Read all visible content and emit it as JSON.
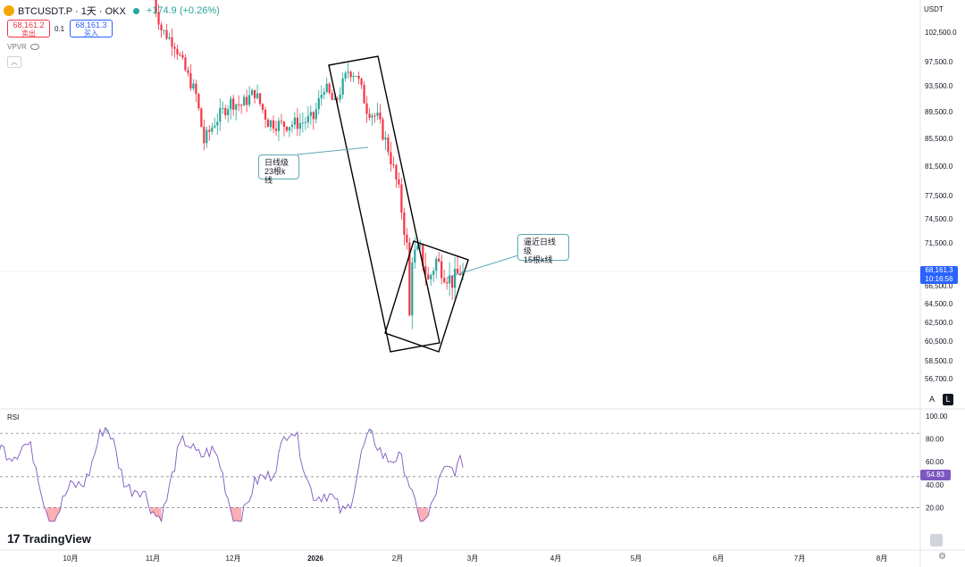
{
  "header": {
    "symbol": "BTCUSDT.P · 1天 · OKX",
    "change": "+174.9 (+0.26%)"
  },
  "quote": {
    "sell_price": "68,161.2",
    "sell_label": "卖出",
    "spread": "0.1",
    "buy_price": "68,161.3",
    "buy_label": "买入"
  },
  "indicator_label": "VPVR",
  "collapse_icon": "chevron-up-icon",
  "currency": "USDT",
  "last_price": "68,161.3",
  "countdown": "10:16:56",
  "scale_buttons": {
    "auto": "A",
    "log": "L"
  },
  "rsi": {
    "label": "RSI",
    "value": "54.83"
  },
  "brand": "TradingView",
  "annotations": [
    {
      "line1": "日线级",
      "line2": "23根k线"
    },
    {
      "line1": "逼近日线级",
      "line2": "15根k线"
    }
  ],
  "colors": {
    "up": "#26a69a",
    "down": "#f23645",
    "rsi": "#7e57c2",
    "price_tag": "#2962ff",
    "note_border": "#5aa9b5"
  },
  "chart_data": [
    {
      "type": "candlestick",
      "title": "BTCUSDT.P · 1天 · OKX",
      "y_axis": {
        "ticks": [
          102500,
          97500,
          93500,
          89500,
          85500,
          81500,
          77500,
          74500,
          71500,
          66500,
          64500,
          62500,
          60500,
          58500,
          56700
        ],
        "ylim": [
          55000,
          106000
        ]
      },
      "x_axis": {
        "tick_labels": [
          "10月",
          "11月",
          "12月",
          "2026",
          "2月",
          "3月",
          "4月",
          "5月",
          "6月",
          "7月",
          "8月"
        ]
      },
      "price_path": [
        [
          "2025-11-01",
          110000
        ],
        [
          "2025-11-05",
          103000
        ],
        [
          "2025-11-10",
          100500
        ],
        [
          "2025-11-14",
          96000
        ],
        [
          "2025-11-18",
          92000
        ],
        [
          "2025-11-21",
          85000
        ],
        [
          "2025-11-25",
          88000
        ],
        [
          "2025-12-01",
          91000
        ],
        [
          "2025-12-05",
          90500
        ],
        [
          "2025-12-10",
          92500
        ],
        [
          "2025-12-15",
          88000
        ],
        [
          "2025-12-20",
          87500
        ],
        [
          "2025-12-27",
          87800
        ],
        [
          "2026-01-01",
          88500
        ],
        [
          "2026-01-05",
          93500
        ],
        [
          "2026-01-09",
          90500
        ],
        [
          "2026-01-14",
          96000
        ],
        [
          "2026-01-17",
          95500
        ],
        [
          "2026-01-21",
          90000
        ],
        [
          "2026-01-25",
          88500
        ],
        [
          "2026-01-29",
          84000
        ],
        [
          "2026-02-02",
          78000
        ],
        [
          "2026-02-05",
          71000
        ],
        [
          "2026-02-06",
          63000
        ],
        [
          "2026-02-07",
          70000
        ],
        [
          "2026-02-10",
          70500
        ],
        [
          "2026-02-13",
          67000
        ],
        [
          "2026-02-16",
          69500
        ],
        [
          "2026-02-19",
          68000
        ],
        [
          "2026-02-22",
          67000
        ],
        [
          "2026-02-25",
          68161.3
        ]
      ],
      "last_price": 68161.3
    },
    {
      "type": "line",
      "title": "RSI",
      "y_axis": {
        "ticks": [
          100,
          80,
          60,
          40,
          20
        ],
        "ylim": [
          0,
          105
        ]
      },
      "levels": [
        85,
        47,
        20
      ],
      "last_value": 54.83
    }
  ]
}
